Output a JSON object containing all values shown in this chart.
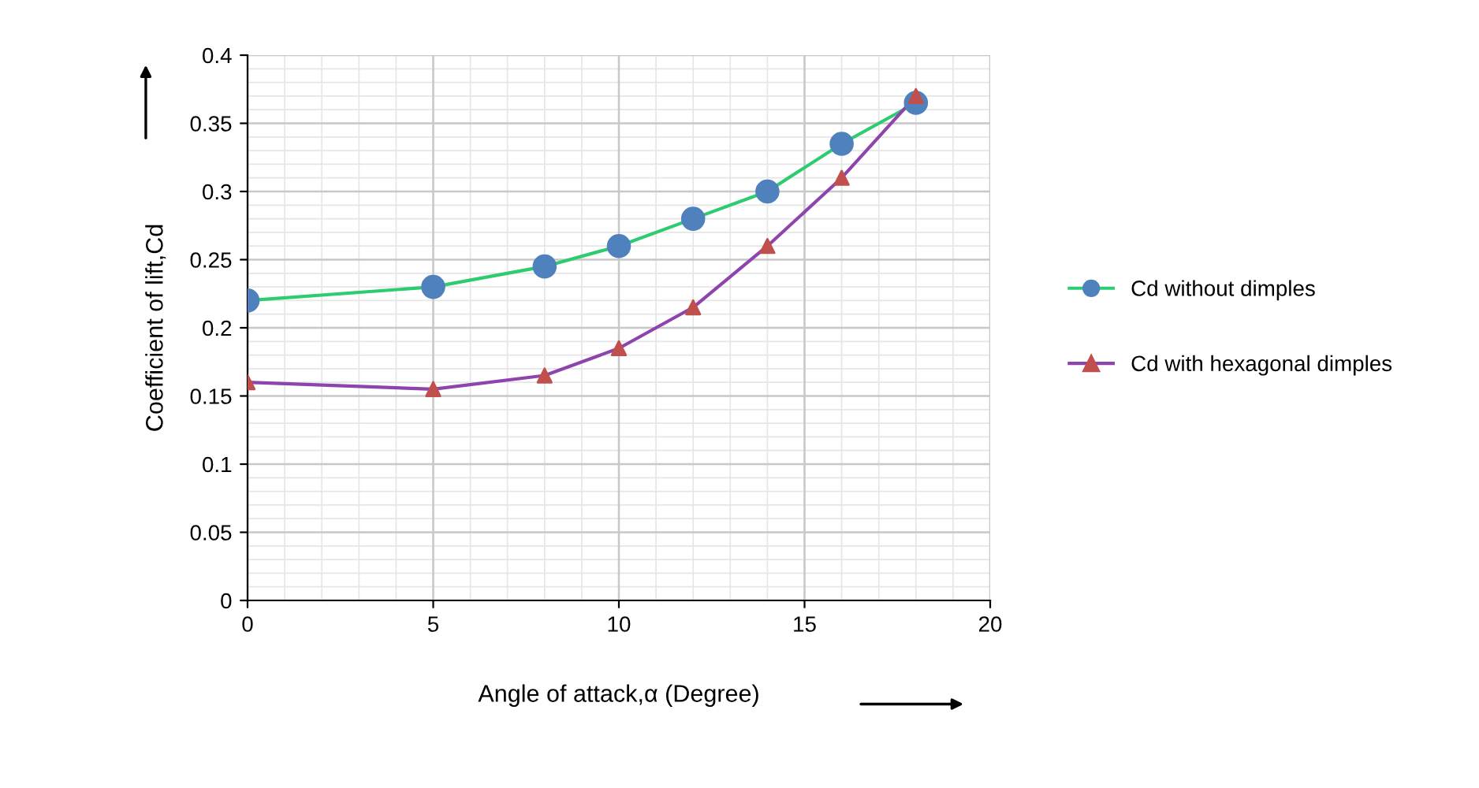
{
  "chart_data": {
    "type": "line",
    "xlabel": "Angle of attack,α (Degree)",
    "ylabel": "Coefficient of lift,Cd",
    "x": [
      0,
      5,
      8,
      10,
      12,
      14,
      16,
      18
    ],
    "series": [
      {
        "name": "Cd without dimples",
        "color": "#2ecc71",
        "colors": [
          "#4f81bd",
          "#4f81bd",
          "#4f81bd",
          "#4f81bd",
          "#4f81bd",
          "#4f81bd",
          "#4f81bd",
          "#4f81bd"
        ],
        "marker": "circle",
        "values": [
          0.22,
          0.23,
          0.245,
          0.26,
          0.28,
          0.3,
          0.335,
          0.365
        ]
      },
      {
        "name": "Cd with hexagonal dimples",
        "color": "#8e44ad",
        "colors": [
          "#c0504d",
          "#c0504d",
          "#c0504d",
          "#c0504d",
          "#c0504d",
          "#c0504d",
          "#c0504d",
          "#c0504d"
        ],
        "marker": "triangle",
        "values": [
          0.16,
          0.155,
          0.165,
          0.185,
          0.215,
          0.26,
          0.31,
          0.37
        ]
      }
    ],
    "xlim": [
      0,
      20
    ],
    "xticks": [
      0,
      5,
      10,
      15,
      20
    ],
    "ylim": [
      0,
      0.4
    ],
    "yticks": [
      0,
      0.05,
      0.1,
      0.15,
      0.2,
      0.25,
      0.3,
      0.35,
      0.4
    ],
    "grid": true,
    "legend": "right"
  }
}
